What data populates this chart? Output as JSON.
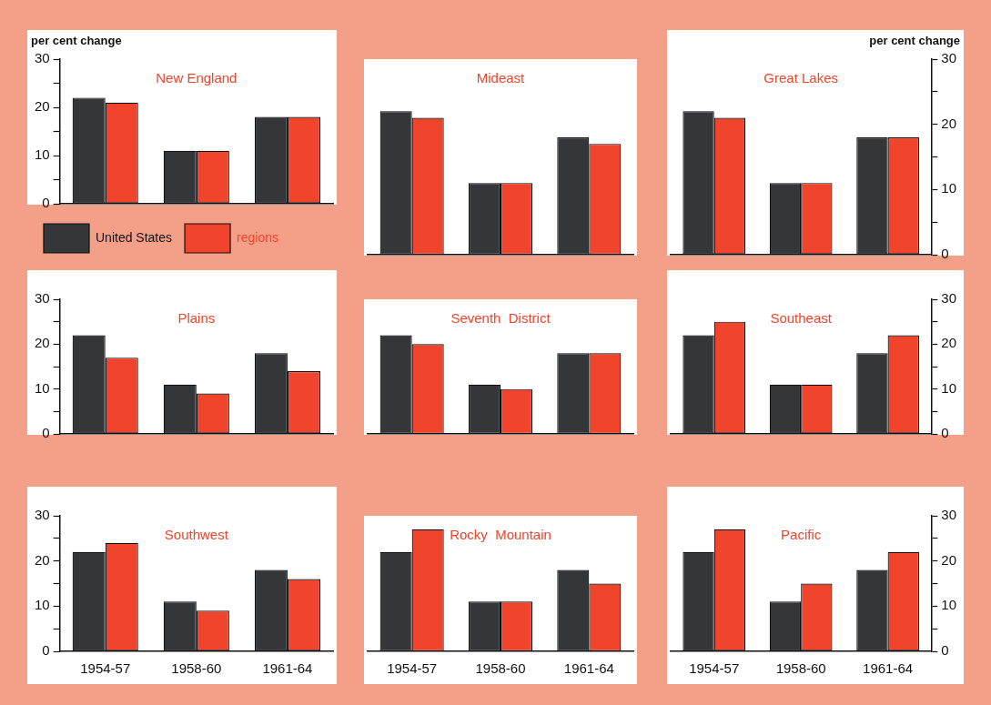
{
  "chart_data": [
    {
      "type": "bar",
      "title": "New England",
      "ylabel": "per cent change",
      "categories": [
        "1954-57",
        "1958-60",
        "1961-64"
      ],
      "ylim": [
        0,
        30
      ],
      "yticks": [
        0,
        {
          "value": 5,
          "label": null
        },
        10,
        {
          "value": 15,
          "label": null
        },
        20,
        {
          "value": 25,
          "label": null
        },
        30
      ],
      "tick_labels": "y",
      "legend": "bottom left",
      "grid": false,
      "series": [
        {
          "name": "United States",
          "color": "#34363a",
          "values": [
            22,
            11,
            18
          ]
        },
        {
          "name": "regions",
          "color": "#f0442c",
          "values": [
            21,
            11,
            18
          ]
        }
      ]
    },
    {
      "type": "bar",
      "title": "Mideast",
      "categories": [
        "1954-57",
        "1958-60",
        "1961-64"
      ],
      "ylim": [
        0,
        30
      ],
      "tick_labels": false,
      "grid": false,
      "series": [
        {
          "color": "#34363a",
          "values": [
            22,
            11,
            18
          ]
        },
        {
          "color": "#f0442c",
          "values": [
            21,
            11,
            17
          ]
        }
      ]
    },
    {
      "type": "bar",
      "title": "Great Lakes",
      "ylabel": "per cent change",
      "categories": [
        "1954-57",
        "1958-60",
        "1961-64"
      ],
      "ylim": [
        0,
        30
      ],
      "yticks": [
        0,
        {
          "value": 5,
          "label": null
        },
        10,
        {
          "value": 15,
          "label": null
        },
        20,
        {
          "value": 25,
          "label": null
        },
        30
      ],
      "tick_labels": "y",
      "grid": false,
      "series": [
        {
          "color": "#34363a",
          "values": [
            22,
            11,
            18
          ]
        },
        {
          "color": "#f0442c",
          "values": [
            21,
            11,
            18
          ]
        }
      ]
    },
    {
      "type": "bar",
      "title": "Plains",
      "categories": [
        "1954-57",
        "1958-60",
        "1961-64"
      ],
      "ylim": [
        0,
        30
      ],
      "yticks": [
        0,
        {
          "value": 5,
          "label": null
        },
        10,
        {
          "value": 15,
          "label": null
        },
        20,
        {
          "value": 25,
          "label": null
        },
        30
      ],
      "tick_labels": "y",
      "grid": false,
      "series": [
        {
          "color": "#34363a",
          "values": [
            22,
            11,
            18
          ]
        },
        {
          "color": "#f0442c",
          "values": [
            17,
            9,
            14
          ]
        }
      ]
    },
    {
      "type": "bar",
      "title": "Seventh  District",
      "categories": [
        "1954-57",
        "1958-60",
        "1961-64"
      ],
      "ylim": [
        0,
        30
      ],
      "tick_labels": false,
      "grid": false,
      "series": [
        {
          "color": "#34363a",
          "values": [
            22,
            11,
            18
          ]
        },
        {
          "color": "#f0442c",
          "values": [
            20,
            10,
            18
          ]
        }
      ]
    },
    {
      "type": "bar",
      "title": "Southeast",
      "categories": [
        "1954-57",
        "1958-60",
        "1961-64"
      ],
      "ylim": [
        0,
        30
      ],
      "yticks": [
        0,
        {
          "value": 5,
          "label": null
        },
        10,
        {
          "value": 15,
          "label": null
        },
        20,
        {
          "value": 25,
          "label": null
        },
        30
      ],
      "tick_labels": "y",
      "grid": false,
      "series": [
        {
          "color": "#34363a",
          "values": [
            22,
            11,
            18
          ]
        },
        {
          "color": "#f0442c",
          "values": [
            25,
            11,
            22
          ]
        }
      ]
    },
    {
      "type": "bar",
      "title": "Southwest",
      "categories": [
        "1954-57",
        "1958-60",
        "1961-64"
      ],
      "ylim": [
        0,
        30
      ],
      "yticks": [
        0,
        {
          "value": 5,
          "label": null
        },
        10,
        {
          "value": 15,
          "label": null
        },
        20,
        {
          "value": 25,
          "label": null
        },
        30
      ],
      "grid": false,
      "series": [
        {
          "color": "#34363a",
          "values": [
            22,
            11,
            18
          ]
        },
        {
          "color": "#f0442c",
          "values": [
            24,
            9,
            16
          ]
        }
      ]
    },
    {
      "type": "bar",
      "title": "Rocky  Mountain",
      "categories": [
        "1954-57",
        "1958-60",
        "1961-64"
      ],
      "ylim": [
        0,
        30
      ],
      "tick_labels": "x",
      "grid": false,
      "series": [
        {
          "color": "#34363a",
          "values": [
            22,
            11,
            18
          ]
        },
        {
          "color": "#f0442c",
          "values": [
            27,
            11,
            15
          ]
        }
      ]
    },
    {
      "type": "bar",
      "title": "Pacific",
      "categories": [
        "1954-57",
        "1958-60",
        "1961-64"
      ],
      "ylim": [
        0,
        30
      ],
      "yticks": [
        0,
        {
          "value": 5,
          "label": null
        },
        10,
        {
          "value": 15,
          "label": null
        },
        20,
        {
          "value": 25,
          "label": null
        },
        30
      ],
      "grid": false,
      "series": [
        {
          "color": "#34363a",
          "values": [
            22,
            11,
            18
          ]
        },
        {
          "color": "#f0442c",
          "values": [
            27,
            15,
            22
          ]
        }
      ]
    }
  ]
}
